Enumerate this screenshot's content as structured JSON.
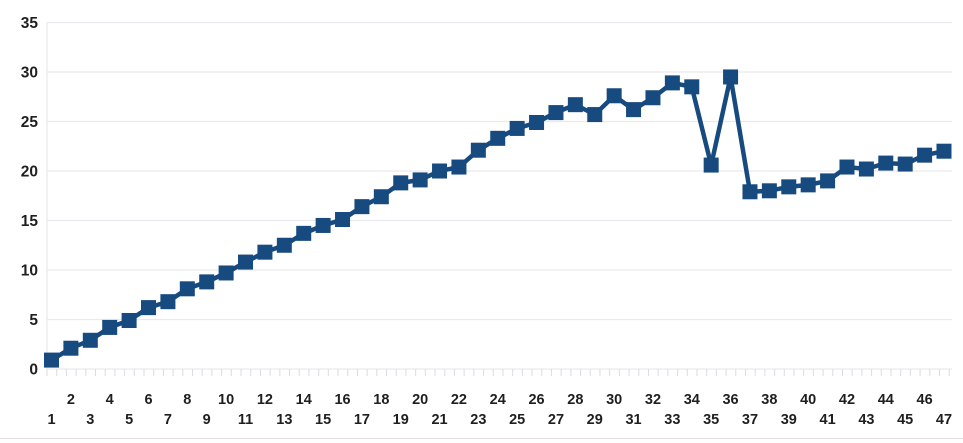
{
  "chart_data": {
    "type": "line",
    "marker_shape": "square",
    "title": "",
    "xlabel": "",
    "ylabel": "",
    "categories": [
      1,
      2,
      3,
      4,
      5,
      6,
      7,
      8,
      9,
      10,
      11,
      12,
      13,
      14,
      15,
      16,
      17,
      18,
      19,
      20,
      21,
      22,
      23,
      24,
      25,
      26,
      27,
      28,
      29,
      30,
      31,
      32,
      33,
      34,
      35,
      36,
      37,
      38,
      39,
      40,
      41,
      42,
      43,
      44,
      45,
      46,
      47
    ],
    "values": [
      0.9,
      2.1,
      2.9,
      4.2,
      4.9,
      6.2,
      6.8,
      8.1,
      8.8,
      9.7,
      10.8,
      11.8,
      12.5,
      13.7,
      14.5,
      15.1,
      16.4,
      17.4,
      18.8,
      19.1,
      20.0,
      20.4,
      22.1,
      23.3,
      24.3,
      24.9,
      25.9,
      26.7,
      25.7,
      27.6,
      26.2,
      27.4,
      28.9,
      28.5,
      20.6,
      29.5,
      17.9,
      18.0,
      18.4,
      18.6,
      19.0,
      20.4,
      20.2,
      20.8,
      20.7,
      21.6,
      22.0
    ],
    "ylim": [
      0,
      35
    ],
    "yticks": [
      0,
      5,
      10,
      15,
      20,
      25,
      30,
      35
    ],
    "xtick_labels": [
      "1",
      "2",
      "3",
      "4",
      "5",
      "6",
      "7",
      "8",
      "9",
      "10",
      "11",
      "12",
      "13",
      "14",
      "15",
      "16",
      "17",
      "18",
      "19",
      "20",
      "21",
      "22",
      "23",
      "24",
      "25",
      "26",
      "27",
      "28",
      "29",
      "30",
      "31",
      "32",
      "33",
      "34",
      "35",
      "36",
      "37",
      "38",
      "39",
      "40",
      "41",
      "42",
      "43",
      "44",
      "45",
      "46",
      "47"
    ],
    "xtick_stagger": "even-top-odd-bottom",
    "grid": "horizontal-faint",
    "legend": "none",
    "colors": {
      "series": "#174a7e",
      "tick_label": "#1f1f1f",
      "gridline": "#e9e9ee",
      "axis_tick": "#dcdce2",
      "background": "#ffffff"
    }
  }
}
